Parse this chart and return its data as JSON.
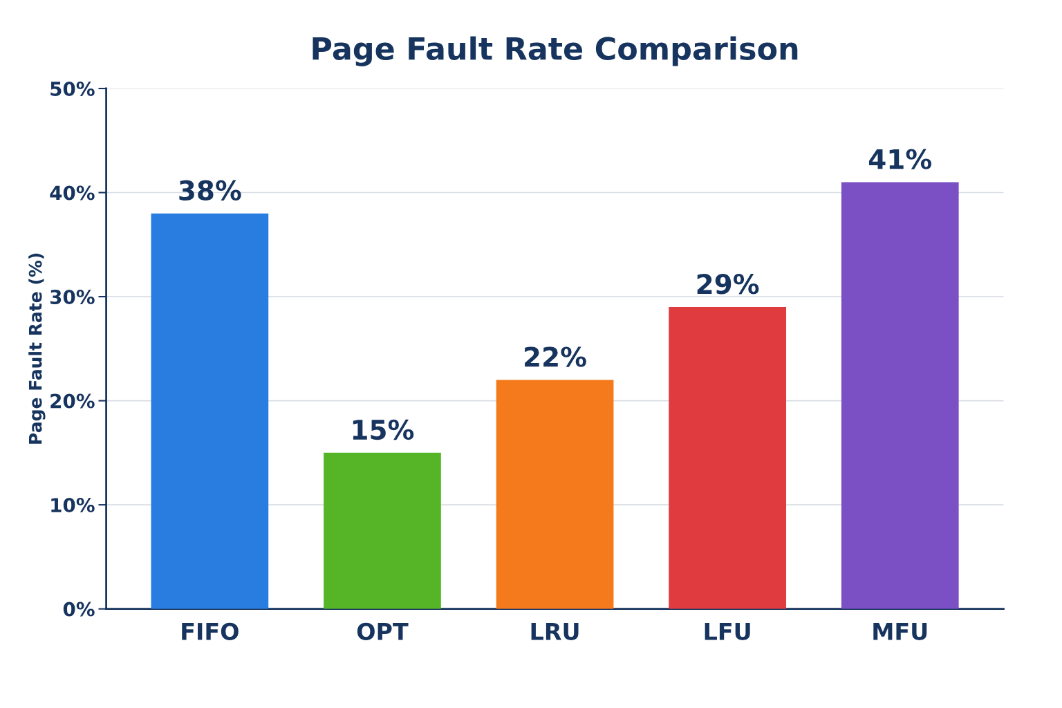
{
  "chart_data": {
    "type": "bar",
    "title": "Page Fault Rate Comparison",
    "ylabel": "Page Fault Rate (%)",
    "categories": [
      "FIFO",
      "OPT",
      "LRU",
      "LFU",
      "MFU"
    ],
    "values": [
      38,
      15,
      22,
      29,
      41
    ],
    "colors": [
      "#2a7de0",
      "#55b526",
      "#f57a1c",
      "#e03b3e",
      "#7a50c4"
    ],
    "value_labels": [
      "38%",
      "15%",
      "22%",
      "29%",
      "41%"
    ],
    "ylim": [
      0,
      50
    ],
    "yticks": [
      {
        "value": 0,
        "label": "0%"
      },
      {
        "value": 10,
        "label": "10%"
      },
      {
        "value": 20,
        "label": "20%"
      },
      {
        "value": 30,
        "label": "30%"
      },
      {
        "value": 40,
        "label": "40%"
      },
      {
        "value": 50,
        "label": "50%"
      }
    ],
    "grid": "y",
    "legend": false
  }
}
